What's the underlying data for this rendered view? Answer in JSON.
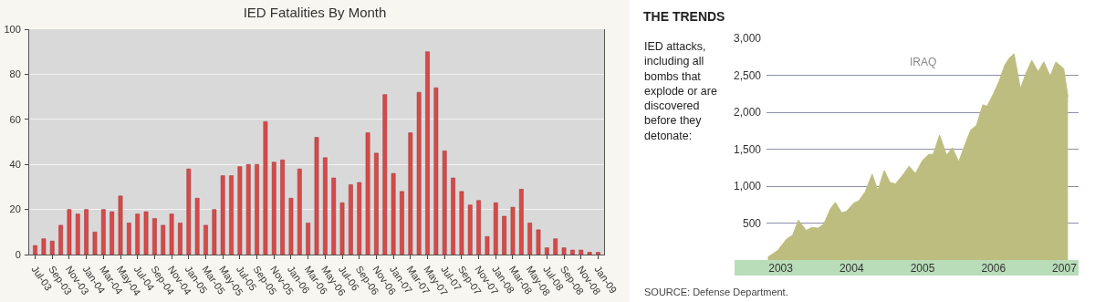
{
  "chart_data": [
    {
      "type": "bar",
      "title": "IED Fatalities By Month",
      "categories": [
        "Jul-03",
        null,
        "Sep-03",
        null,
        "Nov-03",
        null,
        "Jan-04",
        null,
        "Mar-04",
        null,
        "May-04",
        null,
        "Jul-04",
        null,
        "Sep-04",
        null,
        "Nov-04",
        null,
        "Jan-05",
        null,
        "Mar-05",
        null,
        "May-05",
        null,
        "Jul-05",
        null,
        "Sep-05",
        null,
        "Nov-05",
        null,
        "Jan-06",
        null,
        "Mar-06",
        null,
        "May-06",
        null,
        "Jul-06",
        null,
        "Sep-06",
        null,
        "Nov-06",
        null,
        "Jan-07",
        null,
        "Mar-07",
        null,
        "May-07",
        null,
        "Jul-07",
        null,
        "Sep-07",
        null,
        "Nov-07",
        null,
        "Jan-08",
        null,
        "Mar-08",
        null,
        "May-08",
        null,
        "Jul-08",
        null,
        "Sep-08",
        null,
        "Nov-08",
        null,
        "Jan-09"
      ],
      "values": [
        4,
        7,
        6,
        13,
        20,
        18,
        20,
        10,
        20,
        19,
        26,
        14,
        18,
        19,
        16,
        13,
        18,
        14,
        38,
        25,
        13,
        20,
        35,
        35,
        39,
        40,
        40,
        59,
        41,
        42,
        25,
        38,
        14,
        52,
        43,
        34,
        23,
        31,
        32,
        54,
        45,
        71,
        36,
        28,
        54,
        72,
        90,
        74,
        46,
        34,
        28,
        22,
        24,
        8,
        23,
        17,
        21,
        29,
        14,
        11,
        3,
        7,
        3,
        2,
        2,
        1,
        1
      ],
      "color": "#d64a4a",
      "ylim": [
        0,
        100
      ],
      "yticks": [
        0,
        20,
        40,
        60,
        80,
        100
      ],
      "grid": "y"
    },
    {
      "type": "area",
      "title": "THE TRENDS",
      "ylabel": "IED attacks, including all bombs that explode or are discovered before they detonate:",
      "annotations": [
        "IRAQ",
        "SOURCE: Defense Department."
      ],
      "x": [
        2002.82,
        2002.96,
        2003.08,
        2003.17,
        2003.25,
        2003.36,
        2003.44,
        2003.53,
        2003.61,
        2003.7,
        2003.77,
        2003.86,
        2003.93,
        2004.03,
        2004.1,
        2004.19,
        2004.29,
        2004.37,
        2004.46,
        2004.54,
        2004.62,
        2004.73,
        2004.81,
        2004.9,
        2005.0,
        2005.09,
        2005.15,
        2005.24,
        2005.34,
        2005.42,
        2005.51,
        2005.59,
        2005.68,
        2005.76,
        2005.85,
        2005.91,
        2006.0,
        2006.08,
        2006.16,
        2006.23,
        2006.29,
        2006.38,
        2006.46,
        2006.54,
        2006.63,
        2006.71,
        2006.8,
        2006.88,
        2006.99,
        2007.05
      ],
      "values": [
        40,
        130,
        280,
        340,
        540,
        400,
        440,
        430,
        490,
        690,
        780,
        640,
        660,
        770,
        800,
        920,
        1160,
        940,
        1210,
        1050,
        1030,
        1160,
        1270,
        1170,
        1350,
        1430,
        1430,
        1690,
        1420,
        1520,
        1330,
        1540,
        1760,
        1820,
        2100,
        2080,
        2250,
        2420,
        2640,
        2740,
        2790,
        2320,
        2530,
        2700,
        2550,
        2680,
        2490,
        2680,
        2590,
        2210
      ],
      "color": "#bdbd80",
      "xlim": [
        2002.8,
        2007.2
      ],
      "xticks": [
        2003,
        2004,
        2005,
        2006,
        2007
      ],
      "ylim": [
        0,
        3000
      ],
      "yticks": [
        {
          "value": 500,
          "label": "500"
        },
        {
          "value": 1000,
          "label": "1,000"
        },
        {
          "value": 1500,
          "label": "1,500"
        },
        {
          "value": 2000,
          "label": "2,000"
        },
        {
          "value": 2500,
          "label": "2,500"
        },
        {
          "value": 3000,
          "label": "3,000"
        }
      ],
      "grid": "y"
    }
  ]
}
